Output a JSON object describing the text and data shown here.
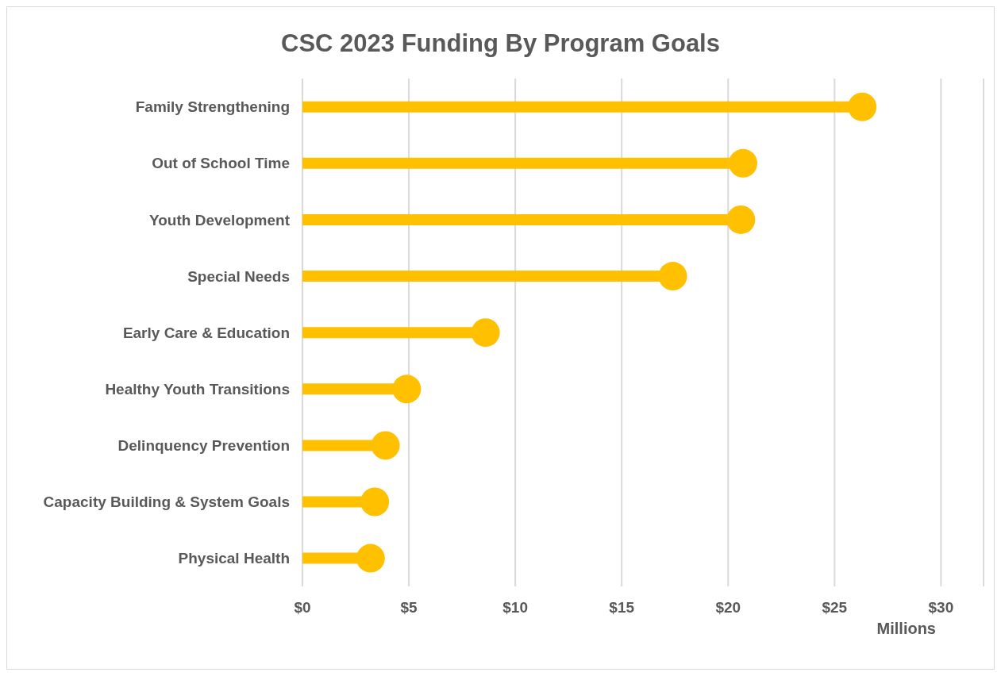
{
  "chart_data": {
    "type": "lollipop",
    "orientation": "horizontal",
    "title": "CSC 2023 Funding By Program Goals",
    "xlabel": "Millions",
    "categories": [
      "Family Strengthening",
      "Out of School Time",
      "Youth Development",
      "Special Needs",
      "Early Care & Education",
      "Healthy Youth Transitions",
      "Delinquency Prevention",
      "Capacity Building & System Goals",
      "Physical Health"
    ],
    "values": [
      26.3,
      20.7,
      20.6,
      17.4,
      8.6,
      4.9,
      3.9,
      3.4,
      3.2
    ],
    "color": "#ffc000",
    "xlim": [
      0,
      32
    ],
    "xticks": [
      {
        "value": 0,
        "label": "$0"
      },
      {
        "value": 5,
        "label": "$5"
      },
      {
        "value": 10,
        "label": "$10"
      },
      {
        "value": 15,
        "label": "$15"
      },
      {
        "value": 20,
        "label": "$20"
      },
      {
        "value": 25,
        "label": "$25"
      },
      {
        "value": 30,
        "label": "$30"
      }
    ],
    "grid": "x"
  }
}
